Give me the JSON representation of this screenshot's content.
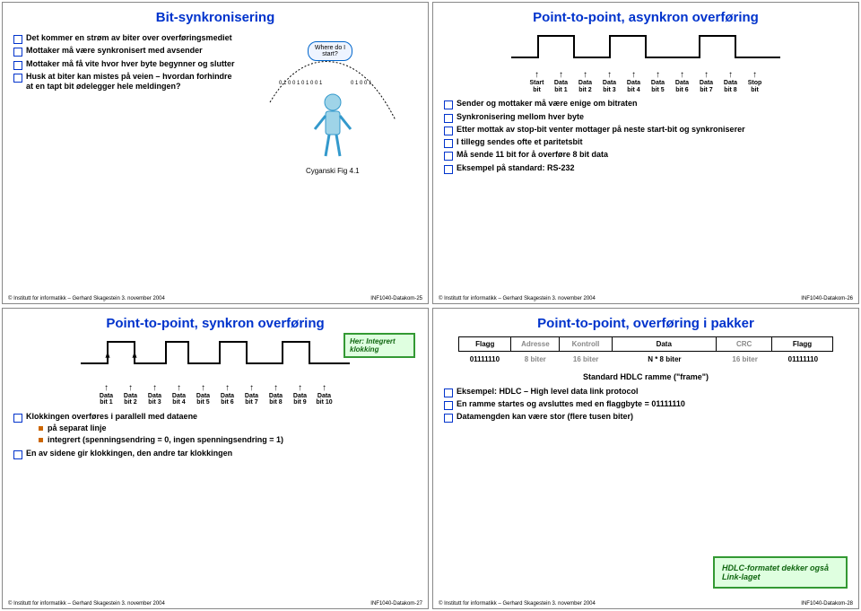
{
  "footer": {
    "left": "© Institutt for informatikk – Gerhard Skagestein 3. november 2004",
    "right_prefix": "INF1040-Datakom-"
  },
  "slide1": {
    "title": "Bit-synkronisering",
    "speech": "Where do I start?",
    "bullets": [
      "Det kommer en strøm av biter over overføringsmediet",
      "Mottaker må være synkronisert med avsender",
      "Mottaker må få vite hvor hver byte begynner og slutter",
      "Husk at biter kan mistes på veien – hvordan forhindre at en tapt bit ødelegger hele meldingen?"
    ],
    "figcap": "Cyganski Fig 4.1",
    "page": "25"
  },
  "slide2": {
    "title": "Point-to-point, asynkron overføring",
    "bits": [
      "Start bit",
      "Data bit 1",
      "Data bit 2",
      "Data bit 3",
      "Data bit 4",
      "Data bit 5",
      "Data bit 6",
      "Data bit 7",
      "Data bit 8",
      "Stop bit"
    ],
    "bullets": [
      "Sender og mottaker må være enige om bitraten",
      "Synkronisering mellom hver byte",
      "Etter mottak av stop-bit venter mottager på neste start-bit og synkroniserer",
      "I tillegg sendes ofte et paritetsbit",
      "Må sende 11 bit for å overføre 8 bit data",
      "Eksempel på standard: RS-232"
    ],
    "page": "26"
  },
  "slide3": {
    "title": "Point-to-point, synkron overføring",
    "note": "Her: Integrert klokking",
    "bits": [
      "Data bit 1",
      "Data bit 2",
      "Data bit 3",
      "Data bit 4",
      "Data bit 5",
      "Data bit 6",
      "Data bit 7",
      "Data bit 8",
      "Data bit 9",
      "Data bit 10"
    ],
    "bullets_main": "Klokkingen overføres i parallell med dataene",
    "sub1": "på separat linje",
    "sub2": "integrert (spenningsendring = 0, ingen spenningsendring = 1)",
    "bullet2": "En av sidene gir klokkingen, den andre tar klokkingen",
    "page": "27"
  },
  "slide4": {
    "title": "Point-to-point, overføring i pakker",
    "frame": {
      "headers": [
        "Flagg",
        "Adresse",
        "Kontroll",
        "Data",
        "CRC",
        "Flagg"
      ],
      "vals": [
        "01111110",
        "8 biter",
        "16 biter",
        "N * 8 biter",
        "16 biter",
        "01111110"
      ],
      "widths": [
        14,
        13,
        14,
        28,
        15,
        16
      ]
    },
    "std": "Standard HDLC ramme (\"frame\")",
    "bullets": [
      "Eksempel: HDLC – High level data link protocol",
      "En ramme startes og avsluttes med en flaggbyte = 01111110",
      "Datamengden kan være stor (flere tusen biter)"
    ],
    "note": "HDLC-formatet dekker også Link-laget",
    "page": "28"
  },
  "colors": {
    "title": "#0033cc",
    "note_border": "#339933",
    "note_bg": "#dfffe0",
    "grey": "#888888"
  }
}
